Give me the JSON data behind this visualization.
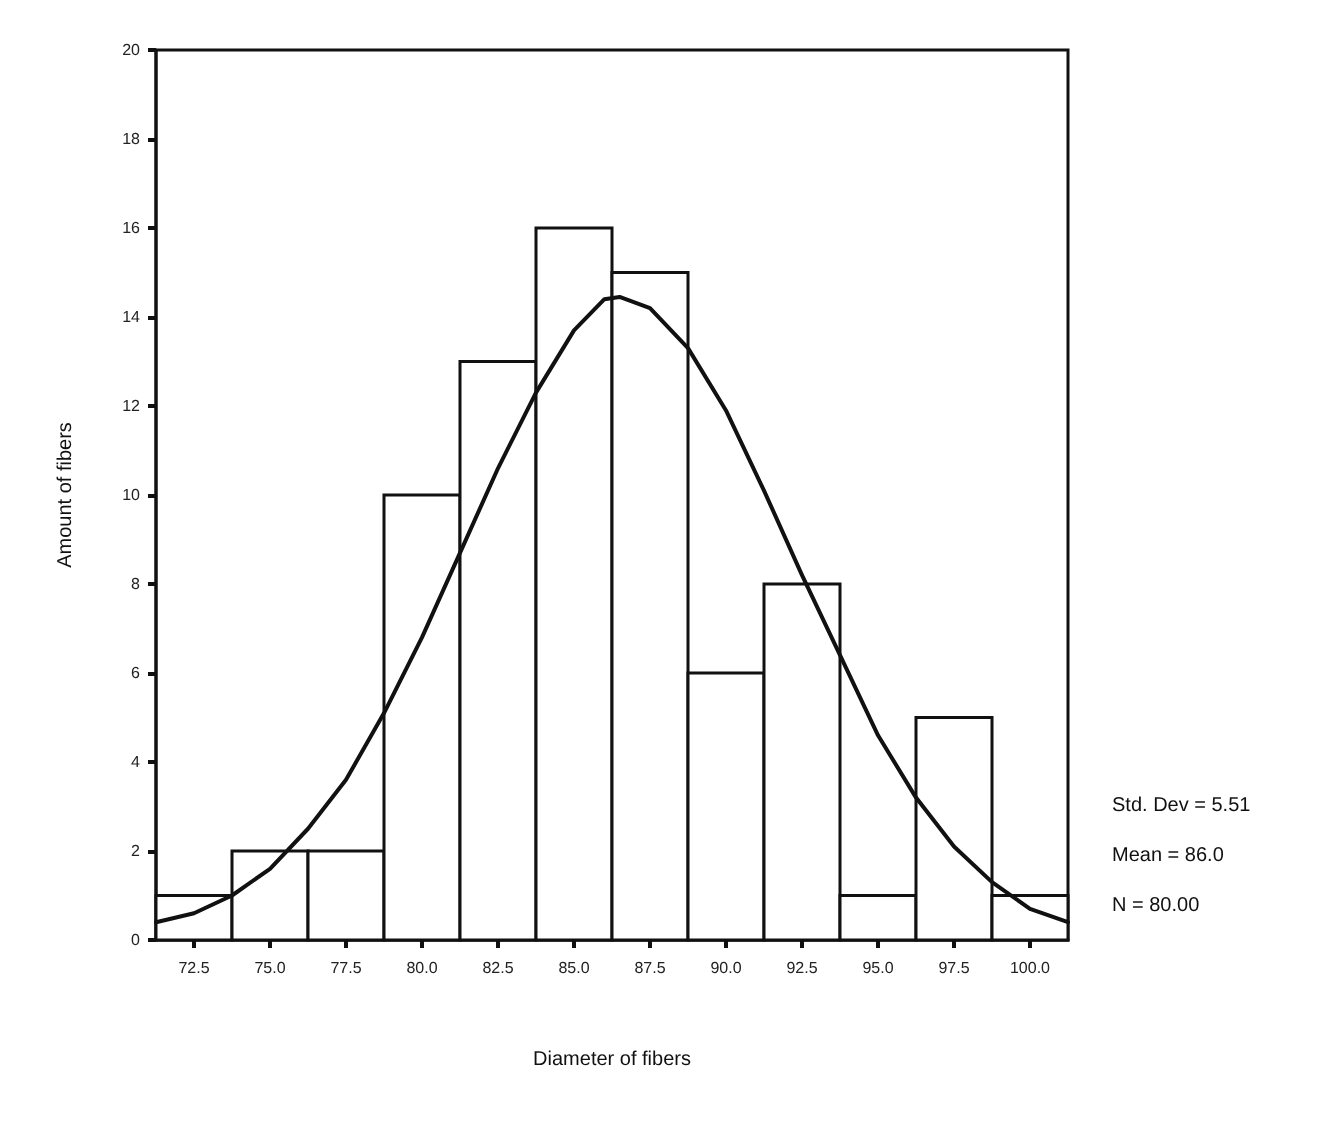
{
  "chart_data": {
    "type": "histogram",
    "xlabel": "Diameter of fibers",
    "ylabel": "Amount of fibers",
    "bins": [
      71.25,
      73.75,
      76.25,
      78.75,
      81.25,
      83.75,
      86.25,
      88.75,
      91.25,
      93.75,
      96.25,
      98.75,
      101.25
    ],
    "values": [
      1,
      2,
      2,
      10,
      13,
      16,
      15,
      6,
      8,
      1,
      5,
      1
    ],
    "color": "#ffffff",
    "series": [
      {
        "type": "line",
        "color": "#111111",
        "x": [
          71.25,
          72.5,
          73.75,
          75,
          76.25,
          77.5,
          78.75,
          80,
          81.25,
          82.5,
          83.75,
          85,
          86,
          86.5,
          87.5,
          88.75,
          90,
          91.25,
          92.5,
          93.75,
          95,
          96.25,
          97.5,
          98.75,
          100,
          101.25
        ],
        "values": [
          0.4,
          0.6,
          1.0,
          1.6,
          2.5,
          3.6,
          5.1,
          6.8,
          8.7,
          10.6,
          12.3,
          13.7,
          14.4,
          14.45,
          14.2,
          13.3,
          11.9,
          10.1,
          8.2,
          6.4,
          4.6,
          3.2,
          2.1,
          1.3,
          0.7,
          0.4
        ]
      }
    ],
    "xlim": [
      71.25,
      101.25
    ],
    "xticks": [
      {
        "value": 72.5,
        "label": "72.5"
      },
      {
        "value": 75,
        "label": "75.0"
      },
      {
        "value": 77.5,
        "label": "77.5"
      },
      {
        "value": 80,
        "label": "80.0"
      },
      {
        "value": 82.5,
        "label": "82.5"
      },
      {
        "value": 85,
        "label": "85.0"
      },
      {
        "value": 87.5,
        "label": "87.5"
      },
      {
        "value": 90,
        "label": "90.0"
      },
      {
        "value": 92.5,
        "label": "92.5"
      },
      {
        "value": 95,
        "label": "95.0"
      },
      {
        "value": 97.5,
        "label": "97.5"
      },
      {
        "value": 100,
        "label": "100.0"
      }
    ],
    "ylim": [
      0,
      20
    ],
    "yticks": [
      0,
      2,
      4,
      6,
      8,
      10,
      12,
      14,
      16,
      18,
      20
    ],
    "annotations": [
      "Std. Dev = 5.51",
      "Mean = 86.0",
      "N = 80.00"
    ],
    "grid": false,
    "marker": "none",
    "line_style": "solid"
  }
}
